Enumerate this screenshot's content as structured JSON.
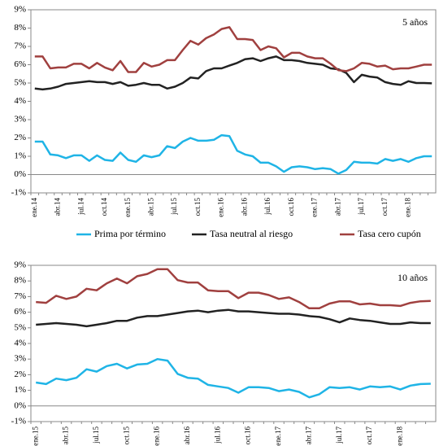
{
  "chart_data": [
    {
      "type": "line",
      "annotation": "5 años",
      "categories": [
        "ene.14",
        null,
        null,
        "abr.14",
        null,
        null,
        "jul.14",
        null,
        null,
        "oct.14",
        null,
        null,
        "ene.15",
        null,
        null,
        "abr.15",
        null,
        null,
        "jul.15",
        null,
        null,
        "oct.15",
        null,
        null,
        "ene.16",
        null,
        null,
        "abr.16",
        null,
        null,
        "jul.16",
        null,
        null,
        "oct.16",
        null,
        null,
        "ene.17",
        null,
        null,
        "abr.17",
        null,
        null,
        "jul.17",
        null,
        null,
        "oct.17",
        null,
        null,
        "ene.18",
        null,
        null,
        null
      ],
      "series": [
        {
          "name": "Prima por término",
          "color": "#1fb4e6",
          "values": [
            1.8,
            1.8,
            1.1,
            1.05,
            0.9,
            1.05,
            1.05,
            0.75,
            1.05,
            0.8,
            0.75,
            1.2,
            0.8,
            0.7,
            1.05,
            0.95,
            1.05,
            1.55,
            1.45,
            1.8,
            2.0,
            1.85,
            1.85,
            1.9,
            2.15,
            2.1,
            1.3,
            1.1,
            1.0,
            0.65,
            0.65,
            0.45,
            0.15,
            0.4,
            0.45,
            0.4,
            0.3,
            0.35,
            0.3,
            0.05,
            0.25,
            0.7,
            0.65,
            0.65,
            0.6,
            0.85,
            0.75,
            0.85,
            0.7,
            0.9,
            1.0,
            1.0
          ]
        },
        {
          "name": "Tasa neutral al riesgo",
          "color": "#222222",
          "values": [
            4.7,
            4.65,
            4.7,
            4.8,
            4.95,
            5.0,
            5.05,
            5.1,
            5.05,
            5.05,
            4.95,
            5.05,
            4.85,
            4.9,
            5.0,
            4.9,
            4.9,
            4.7,
            4.8,
            5.0,
            5.3,
            5.25,
            5.65,
            5.8,
            5.8,
            5.95,
            6.1,
            6.3,
            6.35,
            6.2,
            6.35,
            6.45,
            6.25,
            6.25,
            6.2,
            6.1,
            6.05,
            6.0,
            5.8,
            5.75,
            5.55,
            5.05,
            5.45,
            5.35,
            5.3,
            5.05,
            4.95,
            4.9,
            5.1,
            5.0,
            5.0,
            4.98
          ]
        },
        {
          "name": "Tasa cero cupón",
          "color": "#a0403f",
          "values": [
            6.45,
            6.45,
            5.8,
            5.85,
            5.85,
            6.05,
            6.05,
            5.8,
            6.1,
            5.85,
            5.7,
            6.2,
            5.6,
            5.6,
            6.1,
            5.9,
            6.0,
            6.25,
            6.25,
            6.8,
            7.3,
            7.1,
            7.45,
            7.65,
            7.95,
            8.05,
            7.4,
            7.4,
            7.35,
            6.8,
            7.0,
            6.9,
            6.4,
            6.65,
            6.65,
            6.45,
            6.35,
            6.35,
            6.05,
            5.7,
            5.65,
            5.8,
            6.1,
            6.05,
            5.9,
            5.95,
            5.75,
            5.8,
            5.8,
            5.9,
            6.0,
            6.0
          ]
        }
      ],
      "ylim": [
        -1,
        9
      ],
      "yticks": [
        {
          "value": -1,
          "label": "-1%"
        },
        {
          "value": 0,
          "label": "0%"
        },
        {
          "value": 1,
          "label": "1%"
        },
        {
          "value": 2,
          "label": "2%"
        },
        {
          "value": 3,
          "label": "3%"
        },
        {
          "value": 4,
          "label": "4%"
        },
        {
          "value": 5,
          "label": "5%"
        },
        {
          "value": 6,
          "label": "6%"
        },
        {
          "value": 7,
          "label": "7%"
        },
        {
          "value": 8,
          "label": "8%"
        },
        {
          "value": 9,
          "label": "9%"
        }
      ],
      "grid": false,
      "legend": "bottom"
    },
    {
      "type": "line",
      "annotation": "10 años",
      "categories": [
        "ene.15",
        null,
        null,
        "abr.15",
        null,
        null,
        "jul.15",
        null,
        null,
        "oct.15",
        null,
        null,
        "ene.16",
        null,
        null,
        "abr.16",
        null,
        null,
        "jul.16",
        null,
        null,
        "oct.16",
        null,
        null,
        "ene.17",
        null,
        null,
        "abr.17",
        null,
        null,
        "jul.17",
        null,
        null,
        "oct.17",
        null,
        null,
        "ene.18",
        null,
        null,
        null
      ],
      "series": [
        {
          "color": "#1fb4e6",
          "values": [
            1.5,
            1.4,
            1.75,
            1.65,
            1.8,
            2.35,
            2.2,
            2.55,
            2.7,
            2.4,
            2.65,
            2.7,
            3.0,
            2.9,
            2.05,
            1.8,
            1.75,
            1.35,
            1.25,
            1.15,
            0.85,
            1.2,
            1.2,
            1.15,
            0.95,
            1.05,
            0.9,
            0.55,
            0.75,
            1.2,
            1.15,
            1.2,
            1.05,
            1.25,
            1.2,
            1.25,
            1.05,
            1.3,
            1.4,
            1.42
          ]
        },
        {
          "color": "#222222",
          "values": [
            5.2,
            5.25,
            5.3,
            5.25,
            5.2,
            5.1,
            5.2,
            5.3,
            5.45,
            5.45,
            5.65,
            5.75,
            5.75,
            5.85,
            5.95,
            6.05,
            6.1,
            6.0,
            6.1,
            6.15,
            6.05,
            6.05,
            6.0,
            5.95,
            5.9,
            5.9,
            5.85,
            5.75,
            5.7,
            5.55,
            5.35,
            5.6,
            5.5,
            5.45,
            5.35,
            5.25,
            5.25,
            5.35,
            5.3,
            5.3
          ]
        },
        {
          "color": "#a0403f",
          "values": [
            6.65,
            6.6,
            7.05,
            6.85,
            7.0,
            7.5,
            7.4,
            7.85,
            8.15,
            7.85,
            8.3,
            8.45,
            8.75,
            8.75,
            8.05,
            7.9,
            7.9,
            7.4,
            7.35,
            7.35,
            6.9,
            7.25,
            7.25,
            7.1,
            6.85,
            6.95,
            6.65,
            6.25,
            6.25,
            6.55,
            6.7,
            6.7,
            6.5,
            6.55,
            6.45,
            6.45,
            6.4,
            6.6,
            6.7,
            6.72
          ]
        }
      ],
      "ylim": [
        -1,
        9
      ],
      "yticks": [
        {
          "value": -1,
          "label": "-1%"
        },
        {
          "value": 0,
          "label": "0%"
        },
        {
          "value": 1,
          "label": "1%"
        },
        {
          "value": 2,
          "label": "2%"
        },
        {
          "value": 3,
          "label": "3%"
        },
        {
          "value": 4,
          "label": "4%"
        },
        {
          "value": 5,
          "label": "5%"
        },
        {
          "value": 6,
          "label": "6%"
        },
        {
          "value": 7,
          "label": "7%"
        },
        {
          "value": 8,
          "label": "8%"
        },
        {
          "value": 9,
          "label": "9%"
        }
      ],
      "grid": false
    }
  ]
}
